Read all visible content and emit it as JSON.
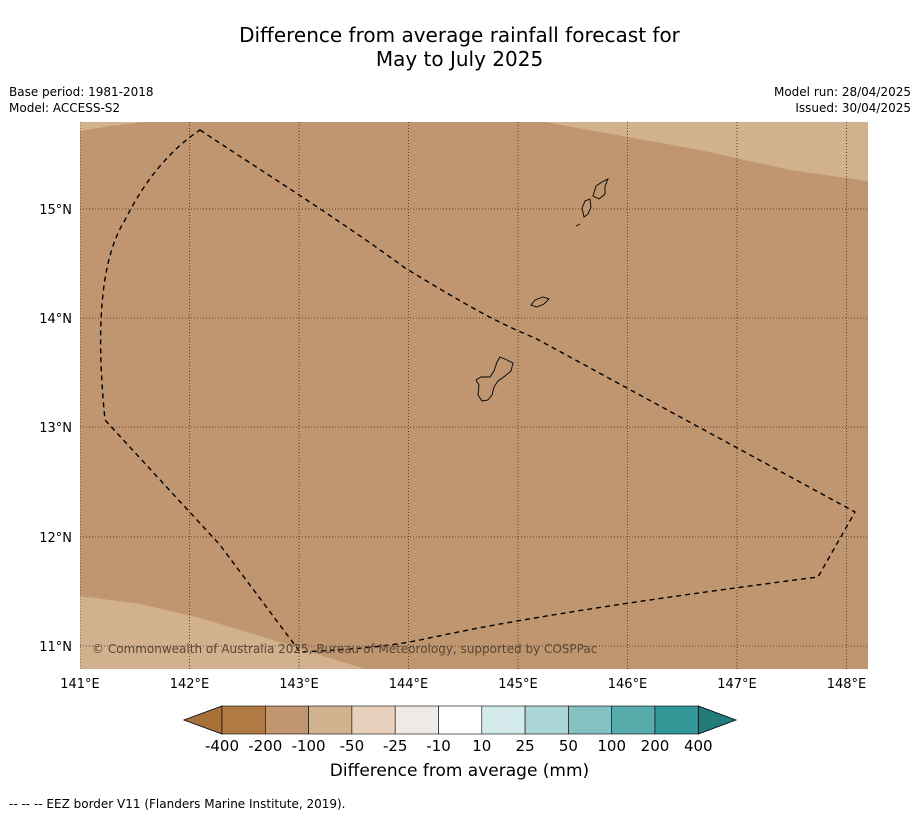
{
  "title_line1": "Difference from average rainfall forecast for",
  "title_line2": "May to July 2025",
  "base_period": "Base period: 1981-2018",
  "model": "Model: ACCESS-S2",
  "model_run": "Model run: 28/04/2025",
  "issued": "Issued: 30/04/2025",
  "copyright": "© Commonwealth of Australia 2025, Bureau of Meteorology, supported by COSPPac",
  "footnote": "--  --  -- EEZ border V11 (Flanders Marine Institute, 2019).",
  "colorbar": {
    "title": "Difference from average (mm)",
    "ticks": [
      "-400",
      "-200",
      "-100",
      "-50",
      "-25",
      "-10",
      "10",
      "25",
      "50",
      "100",
      "200",
      "400"
    ],
    "colors": [
      "#a8713a",
      "#b07a45",
      "#bf9670",
      "#d2b18f",
      "#e8d2be",
      "#eeeae6",
      "#ffffff",
      "#d5ebeb",
      "#acd6d6",
      "#84c1c1",
      "#57abab",
      "#319797",
      "#237a7a"
    ]
  },
  "map": {
    "lon_ticks": [
      "141°E",
      "142°E",
      "143°E",
      "144°E",
      "145°E",
      "146°E",
      "147°E",
      "148°E"
    ],
    "lat_ticks": [
      "15°N",
      "14°N",
      "13°N",
      "12°N",
      "11°N"
    ],
    "background_category": "-200 to -100",
    "background_color": "#bf9670",
    "light_category": "-100 to -50",
    "light_color": "#d2b18f",
    "border_color": "#000000"
  }
}
